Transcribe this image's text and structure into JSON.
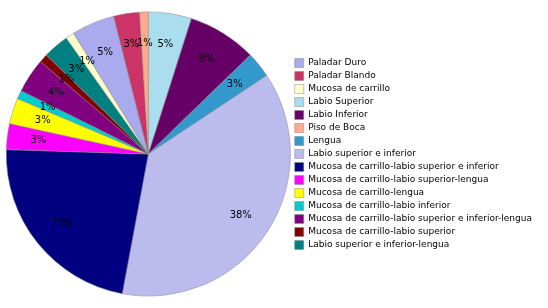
{
  "chart_data": {
    "type": "pie",
    "categories": [
      "Labio Superior",
      "Labio Inferior",
      "Lengua",
      "Labio superior e inferior",
      "Mucosa de carrillo-labio superior e inferior",
      "Mucosa de carrillo-labio superior-lengua",
      "Mucosa de carrillo-lengua",
      "Mucosa de carrillo-labio inferior",
      "Mucosa de carrillo-labio superior e inferior-lengua",
      "Mucosa de carrillo-labio superior",
      "Labio superior e inferior-lengua",
      "Mucosa de carrillo",
      "Paladar Duro",
      "Paladar Blando",
      "Piso de Boca"
    ],
    "values": [
      5,
      8,
      3,
      38,
      23,
      3,
      3,
      1,
      4,
      1,
      3,
      1,
      5,
      3,
      1
    ],
    "value_labels": [
      "5%",
      "8%",
      "3%",
      "38%",
      "23%",
      "3%",
      "3%",
      "1%",
      "4%",
      "1%",
      "3%",
      "1%",
      "5%",
      "3%",
      "1%"
    ],
    "colors": [
      "#AADDEE",
      "#660066",
      "#3399CC",
      "#BBBBEE",
      "#000080",
      "#FF00FF",
      "#FFFF00",
      "#00CCCC",
      "#800080",
      "#800000",
      "#008080",
      "#FFFFCC",
      "#AAAAEE",
      "#CC3366",
      "#FFAA88"
    ],
    "data_labels": true,
    "legend": "right",
    "legend_entries": [
      "Paladar Duro",
      "Paladar Blando",
      "Mucosa de carrillo",
      "Labio Superior",
      "Labio Inferior",
      "Piso de Boca",
      "Lengua",
      "Labio superior e inferior",
      "Mucosa de carrillo-labio superior e inferior",
      "Mucosa de carrillo-labio superior-lengua",
      "Mucosa de carrillo-lengua",
      "Mucosa de carrillo-labio inferior",
      "Mucosa de carrillo-labio superior e inferior-lengua",
      "Mucosa de carrillo-labio superior",
      "Labio superior e inferior-lengua"
    ]
  }
}
